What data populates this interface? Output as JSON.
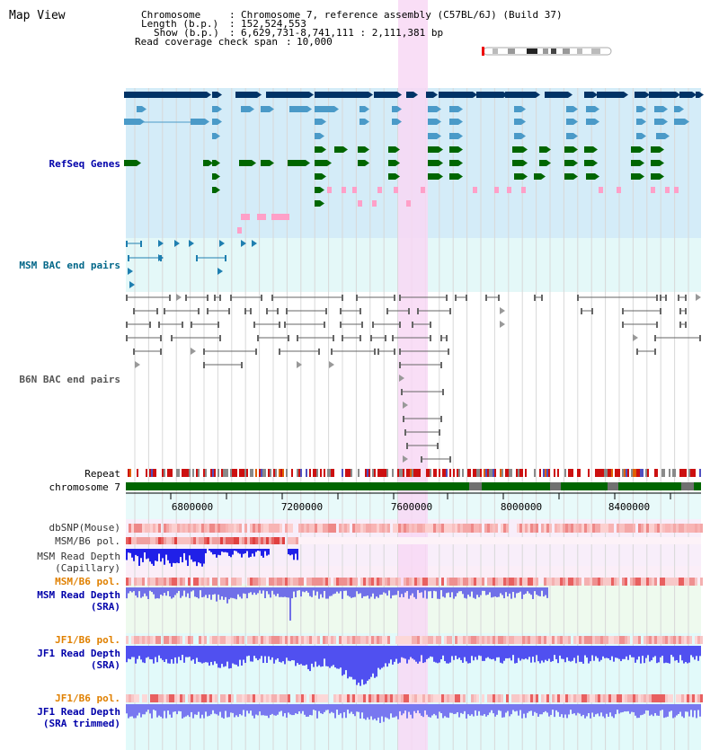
{
  "app": {
    "title": "Map View"
  },
  "header": {
    "lines": [
      {
        "label": "Chromosome",
        "value": "Chromosome 7, reference assembly (C57BL/6J) (Build 37)"
      },
      {
        "label": "Length (b.p.)",
        "value": "152,524,553"
      },
      {
        "label": "Show (b.p.)",
        "value": "6,629,731-8,741,111 : 2,111,381 bp"
      },
      {
        "label": "Read coverage check span",
        "value": "10,000"
      }
    ]
  },
  "tracks": {
    "refseq_genes": {
      "label": "RefSeq Genes",
      "color": "#0000aa"
    },
    "msm_bac": {
      "label": "MSM BAC end pairs",
      "color": "#006688"
    },
    "b6n_bac": {
      "label": "B6N BAC end pairs",
      "color": "#555555"
    },
    "repeat": {
      "label": "Repeat"
    },
    "chromosome": {
      "label": "chromosome 7"
    },
    "dbsnp": {
      "label": "dbSNP(Mouse)"
    },
    "msm_b6_pol": {
      "label": "MSM/B6 pol."
    },
    "msm_depth_cap": {
      "label1": "MSM Read Depth",
      "label2": "(Capillary)"
    },
    "msm_b6_pol2": {
      "label": "MSM/B6 pol.",
      "color": "#e08000"
    },
    "msm_depth_sra": {
      "label1": "MSM Read Depth",
      "label2": "(SRA)",
      "color": "#0000aa"
    },
    "jf1_b6_pol": {
      "label": "JF1/B6 pol.",
      "color": "#e08000"
    },
    "jf1_depth_sra": {
      "label1": "JF1 Read Depth",
      "label2": "(SRA)",
      "color": "#0000aa"
    },
    "jf1_b6_pol2": {
      "label": "JF1/B6 pol.",
      "color": "#e08000"
    },
    "jf1_depth_trim": {
      "label1": "JF1 Read Depth",
      "label2": "(SRA trimmed)",
      "color": "#0000aa"
    }
  },
  "axis": {
    "ticks": [
      "6800000",
      "7200000",
      "7600000",
      "8000000",
      "8400000"
    ]
  },
  "colors": {
    "highlight": "#f8d8f4",
    "gene_dark": "#003366",
    "gene_mid": "#4a9ac8",
    "gene_green": "#006600",
    "pink": "#ffa0c8"
  }
}
